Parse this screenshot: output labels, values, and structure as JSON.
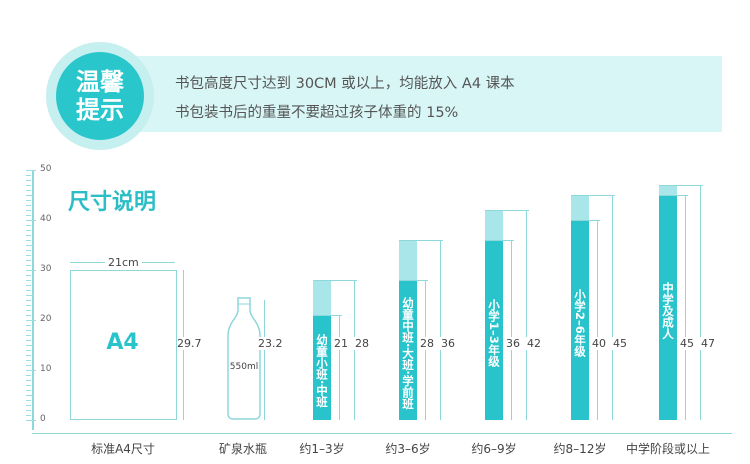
{
  "tip": {
    "title_line1": "温馨",
    "title_line2": "提示",
    "line1": "书包高度尺寸达到 30CM 或以上，均能放入 A4 课本",
    "line2": "书包装书后的重量不要超过孩子体重的 15%"
  },
  "section_title": "尺寸说明",
  "axis": {
    "ticks": [
      "50",
      "40",
      "30",
      "20",
      "10",
      "0"
    ]
  },
  "a4": {
    "width_label": "21cm",
    "label": "A4",
    "height_label": "29.7",
    "category": "标准A4尺寸"
  },
  "bottle": {
    "volume": "550ml",
    "height_label": "23.2",
    "category": "矿泉水瓶"
  },
  "bars": [
    {
      "inner_label": "幼童小班·中班",
      "range": "21  28",
      "category": "约1–3岁",
      "min": 21,
      "max": 28
    },
    {
      "inner_label": "幼童中班·大班·学前班",
      "range": "28  36",
      "category": "约3–6岁",
      "min": 28,
      "max": 36
    },
    {
      "inner_label": "小学1–3年级",
      "range": "36  42",
      "category": "约6–9岁",
      "min": 36,
      "max": 42
    },
    {
      "inner_label": "小学2–6年级",
      "range": "40  45",
      "category": "约8–12岁",
      "min": 40,
      "max": 45
    },
    {
      "inner_label": "中学及成人",
      "range": "45  47",
      "category": "中学阶段或以上",
      "min": 45,
      "max": 47
    }
  ],
  "colors": {
    "accent": "#29c3cb",
    "light": "#a9e6ea",
    "band": "#d9f6f6"
  }
}
